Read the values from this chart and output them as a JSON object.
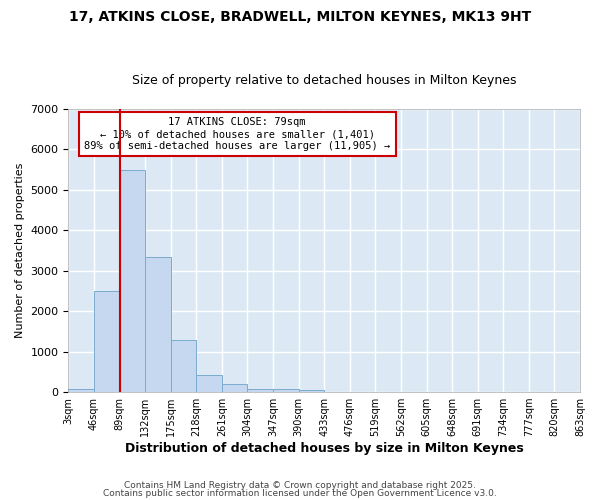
{
  "title1": "17, ATKINS CLOSE, BRADWELL, MILTON KEYNES, MK13 9HT",
  "title2": "Size of property relative to detached houses in Milton Keynes",
  "xlabel": "Distribution of detached houses by size in Milton Keynes",
  "ylabel": "Number of detached properties",
  "bar_color": "#c5d8f0",
  "bar_edge_color": "#7aabcf",
  "background_color": "#dce9f5",
  "grid_color": "#ffffff",
  "bin_edges": [
    3,
    46,
    89,
    132,
    175,
    218,
    261,
    304,
    347,
    390,
    433,
    476,
    519,
    562,
    605,
    648,
    691,
    734,
    777,
    820,
    863
  ],
  "bin_labels": [
    "3sqm",
    "46sqm",
    "89sqm",
    "132sqm",
    "175sqm",
    "218sqm",
    "261sqm",
    "304sqm",
    "347sqm",
    "390sqm",
    "433sqm",
    "476sqm",
    "519sqm",
    "562sqm",
    "605sqm",
    "648sqm",
    "691sqm",
    "734sqm",
    "777sqm",
    "820sqm",
    "863sqm"
  ],
  "bar_heights": [
    75,
    2500,
    5500,
    3350,
    1300,
    425,
    200,
    75,
    75,
    50,
    0,
    0,
    0,
    0,
    0,
    0,
    0,
    0,
    0,
    0
  ],
  "property_line_x": 89,
  "property_line_color": "#cc0000",
  "ylim": [
    0,
    7000
  ],
  "annotation_title": "17 ATKINS CLOSE: 79sqm",
  "annotation_line1": "← 10% of detached houses are smaller (1,401)",
  "annotation_line2": "89% of semi-detached houses are larger (11,905) →",
  "annotation_box_color": "#ffffff",
  "annotation_box_edge": "#cc0000",
  "footer1": "Contains HM Land Registry data © Crown copyright and database right 2025.",
  "footer2": "Contains public sector information licensed under the Open Government Licence v3.0."
}
